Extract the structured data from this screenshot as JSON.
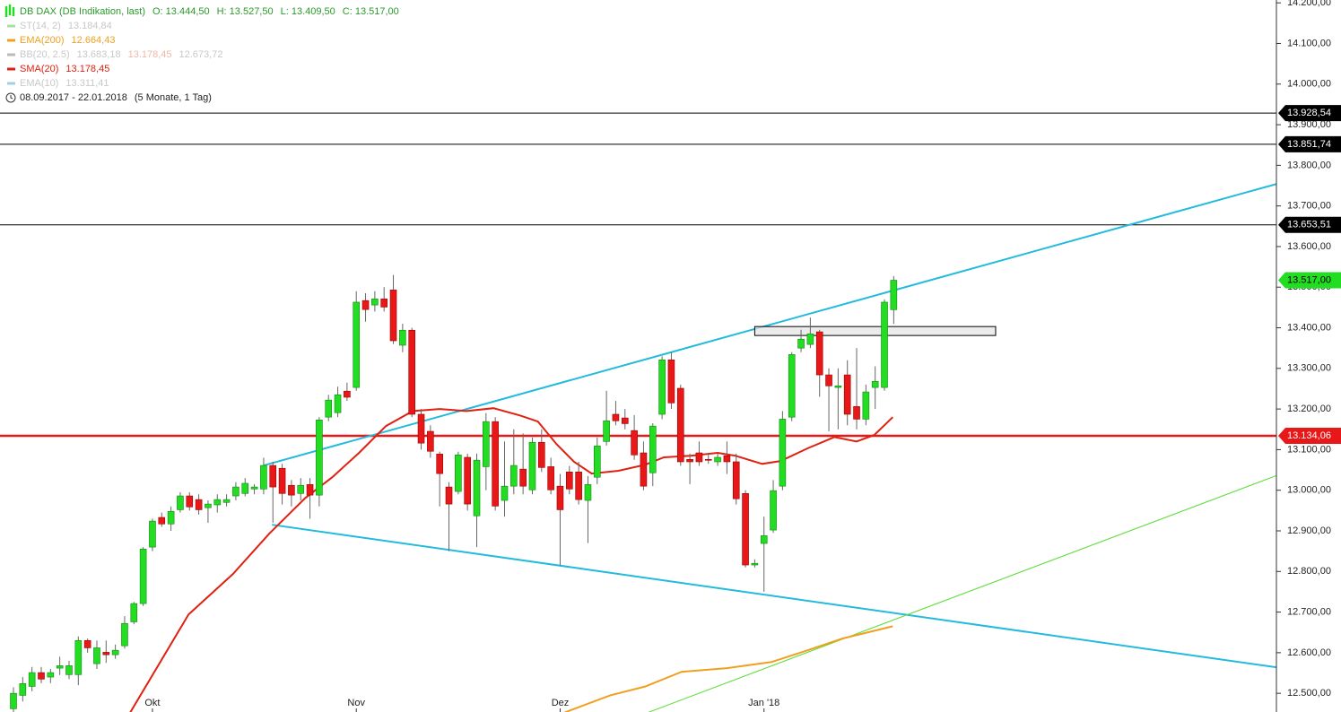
{
  "chart_data": {
    "type": "candlestick",
    "title": "DB DAX (DB Indikation, last)",
    "quote": [
      "O: 13.444,50",
      "H: 13.527,50",
      "L: 13.409,50",
      "C: 13.517,00"
    ],
    "legend": [
      {
        "name": "ST(14, 2)",
        "texts": [
          "13.184,84"
        ],
        "color": "#a8e0a0",
        "faded": true
      },
      {
        "name": "EMA(200)",
        "texts": [
          "12.664,43"
        ],
        "color": "#f0a020",
        "faded": false
      },
      {
        "name": "BB(20, 2.5)",
        "texts": [
          "13.683,18",
          "13.178,45",
          "12.673,72"
        ],
        "color": "#bbbbbb",
        "faded": true
      },
      {
        "name": "SMA(20)",
        "texts": [
          "13.178,45"
        ],
        "color": "#e02010",
        "faded": false
      },
      {
        "name": "EMA(10)",
        "texts": [
          "13.311,41"
        ],
        "color": "#a0d0e8",
        "faded": true
      }
    ],
    "period": "08.09.2017 - 22.01.2018",
    "period_note": "(5 Monate, 1 Tag)",
    "categories": [
      null,
      null,
      null,
      null,
      null,
      null,
      null,
      null,
      null,
      null,
      null,
      null,
      null,
      null,
      null,
      "Okt",
      null,
      null,
      null,
      null,
      null,
      null,
      null,
      null,
      null,
      null,
      null,
      null,
      null,
      null,
      null,
      null,
      null,
      null,
      null,
      null,
      null,
      "Nov",
      null,
      null,
      null,
      null,
      null,
      null,
      null,
      null,
      null,
      null,
      null,
      null,
      null,
      null,
      null,
      null,
      null,
      null,
      null,
      null,
      null,
      "Dez",
      null,
      null,
      null,
      null,
      null,
      null,
      null,
      null,
      null,
      null,
      null,
      null,
      null,
      null,
      null,
      null,
      null,
      null,
      null,
      null,
      null,
      "Jan '18",
      null,
      null,
      null,
      null,
      null,
      null,
      null,
      null,
      null,
      null,
      null,
      null,
      null,
      null
    ],
    "open": [
      12462,
      12495,
      12517,
      12551,
      12540,
      12562,
      12546,
      12546,
      12630,
      12573,
      12601,
      12595,
      12617,
      12676,
      12721,
      12860,
      12933,
      12917,
      12952,
      12986,
      12977,
      12957,
      12964,
      12970,
      12986,
      12992,
      13003,
      13003,
      13061,
      13054,
      13012,
      12992,
      13014,
      12988,
      13180,
      13191,
      13244,
      13253,
      13467,
      13456,
      13471,
      13493,
      13357,
      13394,
      13187,
      13145,
      13089,
      13008,
      12997,
      13081,
      12937,
      13058,
      13169,
      12975,
      13010,
      13052,
      13001,
      13118,
      13058,
      13010,
      13045,
      13045,
      12975,
      13032,
      13120,
      13187,
      13178,
      13147,
      13092,
      13043,
      13187,
      13321,
      13251,
      13076,
      13092,
      13076,
      13070,
      13085,
      13070,
      12992,
      12816,
      12869,
      12902,
      13010,
      13180,
      13350,
      13359,
      13390,
      13284,
      13253,
      13284,
      13206,
      13175,
      13253,
      13253,
      13444.5
    ],
    "high": [
      12515,
      12540,
      12565,
      12565,
      12560,
      12590,
      12580,
      12640,
      12635,
      12630,
      12630,
      12620,
      12690,
      12725,
      12860,
      12930,
      12945,
      12960,
      12995,
      12995,
      12990,
      12975,
      12990,
      12990,
      13020,
      13030,
      13015,
      13080,
      13070,
      13065,
      13025,
      13030,
      13030,
      13180,
      13235,
      13255,
      13265,
      13490,
      13485,
      13490,
      13500,
      13530,
      13410,
      13400,
      13200,
      13160,
      13095,
      13020,
      13095,
      13090,
      13090,
      13190,
      13180,
      13120,
      13150,
      13140,
      13130,
      13150,
      13080,
      13040,
      13060,
      13070,
      13035,
      13130,
      13245,
      13220,
      13200,
      13185,
      13120,
      13165,
      13330,
      13340,
      13260,
      13090,
      13120,
      13090,
      13090,
      13120,
      13090,
      13000,
      12830,
      12935,
      13025,
      13195,
      13340,
      13395,
      13425,
      13395,
      13300,
      13300,
      13320,
      13350,
      13260,
      13305,
      13470,
      13527.5
    ],
    "low": [
      12450,
      12480,
      12505,
      12525,
      12525,
      12545,
      12535,
      12520,
      12600,
      12560,
      12575,
      12585,
      12610,
      12670,
      12715,
      12850,
      12910,
      12900,
      12945,
      12950,
      12940,
      12920,
      12945,
      12960,
      12975,
      12985,
      12990,
      12990,
      12920,
      12965,
      12960,
      12975,
      12930,
      12960,
      13170,
      13180,
      13220,
      13245,
      13415,
      13440,
      13440,
      13360,
      13340,
      13180,
      13100,
      13080,
      12960,
      12850,
      12990,
      12950,
      12860,
      13000,
      12950,
      12935,
      12990,
      12990,
      12990,
      13045,
      12990,
      12815,
      12990,
      12965,
      12870,
      13015,
      13110,
      13160,
      13150,
      13075,
      13000,
      13010,
      13175,
      13200,
      13060,
      13015,
      13060,
      13065,
      13060,
      13040,
      12965,
      12810,
      12810,
      12750,
      12895,
      13000,
      13170,
      13340,
      13350,
      13230,
      13145,
      13150,
      13160,
      13150,
      13160,
      13200,
      13245,
      13409.5
    ],
    "close": [
      12500,
      12524,
      12551,
      12535,
      12551,
      12568,
      12568,
      12630,
      12612,
      12612,
      12595,
      12606,
      12672,
      12721,
      12855,
      12924,
      12917,
      12948,
      12986,
      12959,
      12952,
      12966,
      12977,
      12977,
      13008,
      13017,
      13008,
      13061,
      13008,
      12992,
      12988,
      13012,
      12988,
      13173,
      13222,
      13235,
      13229,
      13463,
      13445,
      13471,
      13451,
      13368,
      13394,
      13187,
      13116,
      13096,
      13041,
      12966,
      13087,
      12966,
      13074,
      13169,
      12961,
      13010,
      13061,
      13010,
      13118,
      13056,
      13001,
      12952,
      13003,
      12977,
      13014,
      13109,
      13171,
      13171,
      13164,
      13087,
      13010,
      13158,
      13321,
      13215,
      13070,
      13070,
      13070,
      13074,
      13081,
      13070,
      12979,
      12816,
      12820,
      12888,
      12999,
      13175,
      13334,
      13372,
      13385,
      13284,
      13257,
      13257,
      13187,
      13175,
      13242,
      13268,
      13463,
      13517
    ],
    "up_color": "#22dd22",
    "down_color": "#e81818",
    "ylim": [
      12454,
      14207
    ],
    "yticks": [
      {
        "value": 12500,
        "label": "12.500,00"
      },
      {
        "value": 12600,
        "label": "12.600,00"
      },
      {
        "value": 12700,
        "label": "12.700,00"
      },
      {
        "value": 12800,
        "label": "12.800,00"
      },
      {
        "value": 12900,
        "label": "12.900,00"
      },
      {
        "value": 13000,
        "label": "13.000,00"
      },
      {
        "value": 13100,
        "label": "13.100,00"
      },
      {
        "value": 13200,
        "label": "13.200,00"
      },
      {
        "value": 13300,
        "label": "13.300,00"
      },
      {
        "value": 13400,
        "label": "13.400,00"
      },
      {
        "value": 13500,
        "label": "13.500,00"
      },
      {
        "value": 13600,
        "label": "13.600,00"
      },
      {
        "value": 13700,
        "label": "13.700,00"
      },
      {
        "value": 13800,
        "label": "13.800,00"
      },
      {
        "value": 13900,
        "label": "13.900,00"
      },
      {
        "value": 14000,
        "label": "14.000,00"
      },
      {
        "value": 14100,
        "label": "14.100,00"
      },
      {
        "value": 14200,
        "label": "14.200,00"
      }
    ],
    "levels": [
      {
        "value": 13928.54,
        "label": "13.928,54",
        "color": "#000000"
      },
      {
        "value": 13851.74,
        "label": "13.851,74",
        "color": "#000000"
      },
      {
        "value": 13653.51,
        "label": "13.653,51",
        "color": "#000000"
      },
      {
        "value": 13134.06,
        "label": "13.134,06",
        "color": "#e81818"
      }
    ],
    "last_label": "13.517,00",
    "overlays": [
      {
        "name": "SMA(20)",
        "color": "#e02010",
        "x": [
          12.6,
          18.9,
          23.7,
          27.6,
          31.5,
          34.4,
          37.3,
          40.2,
          43.1,
          46.0,
          48.9,
          51.8,
          54.7,
          56.6,
          58.6,
          60.5,
          62.4,
          65.3,
          68.2,
          70.2,
          73.1,
          76.0,
          77.9,
          80.8,
          82.8,
          85.7,
          88.6,
          91.0,
          92.9,
          94.9
        ],
        "values": [
          12453,
          12694,
          12794,
          12893,
          12981,
          13032,
          13092,
          13158,
          13195,
          13200,
          13195,
          13202,
          13184,
          13169,
          13114,
          13070,
          13041,
          13048,
          13063,
          13081,
          13085,
          13092,
          13085,
          13065,
          13072,
          13103,
          13131,
          13120,
          13136,
          13180
        ]
      },
      {
        "name": "EMA(200)",
        "color": "#f0a020",
        "x": [
          59.5,
          64.4,
          68.2,
          72.1,
          77.0,
          81.8,
          85.7,
          89.5,
          94.9
        ],
        "values": [
          12453,
          12495,
          12517,
          12553,
          12562,
          12577,
          12606,
          12635,
          12665
        ]
      }
    ],
    "trendlines": [
      {
        "color": "#22bbdd",
        "x": [
          27,
          136.3
        ],
        "y": [
          13061,
          13754
        ]
      },
      {
        "color": "#22bbdd",
        "x": [
          27.9,
          136.3
        ],
        "y": [
          12915,
          12564
        ]
      },
      {
        "color": "#55dd33",
        "x": [
          68.5,
          136.3
        ],
        "y": [
          12453,
          13036
        ]
      }
    ],
    "zone": {
      "x": [
        80,
        106
      ],
      "y": [
        13403,
        13381
      ]
    }
  }
}
